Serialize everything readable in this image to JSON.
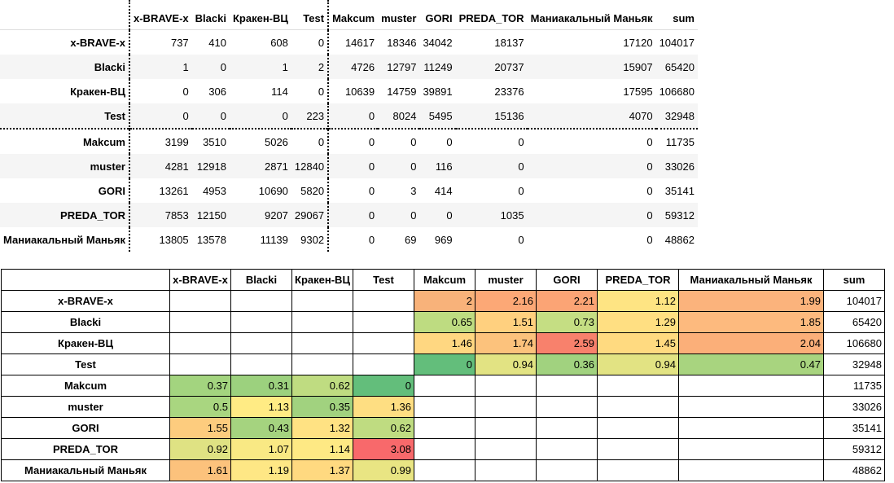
{
  "players": [
    "x-BRAVE-x",
    "Blacki",
    "Кракен-ВЦ",
    "Test",
    "Makcum",
    "muster",
    "GORI",
    "PREDA_TOR",
    "Маниакальный Маньяк"
  ],
  "top_table": {
    "header": [
      "",
      "x-BRAVE-x",
      "Blacki",
      "Кракен-ВЦ",
      "Test",
      "Makcum",
      "muster",
      "GORI",
      "PREDA_TOR",
      "Маниакальный Маньяк",
      "sum"
    ],
    "rows": [
      [
        "x-BRAVE-x",
        "737",
        "410",
        "608",
        "0",
        "14617",
        "18346",
        "34042",
        "18137",
        "17120",
        "104017"
      ],
      [
        "Blacki",
        "1",
        "0",
        "1",
        "2",
        "4726",
        "12797",
        "11249",
        "20737",
        "15907",
        "65420"
      ],
      [
        "Кракен-ВЦ",
        "0",
        "306",
        "114",
        "0",
        "10639",
        "14759",
        "39891",
        "23376",
        "17595",
        "106680"
      ],
      [
        "Test",
        "0",
        "0",
        "0",
        "223",
        "0",
        "8024",
        "5495",
        "15136",
        "4070",
        "32948"
      ],
      [
        "Makcum",
        "3199",
        "3510",
        "5026",
        "0",
        "0",
        "0",
        "0",
        "0",
        "0",
        "11735"
      ],
      [
        "muster",
        "4281",
        "12918",
        "2871",
        "12840",
        "0",
        "0",
        "116",
        "0",
        "0",
        "33026"
      ],
      [
        "GORI",
        "13261",
        "4953",
        "10690",
        "5820",
        "0",
        "3",
        "414",
        "0",
        "0",
        "35141"
      ],
      [
        "PREDA_TOR",
        "7853",
        "12150",
        "9207",
        "29067",
        "0",
        "0",
        "0",
        "1035",
        "0",
        "59312"
      ],
      [
        "Маниакальный Маньяк",
        "13805",
        "13578",
        "11139",
        "9302",
        "0",
        "69",
        "969",
        "0",
        "0",
        "48862"
      ]
    ]
  },
  "grid": {
    "header": [
      "",
      "x-BRAVE-x",
      "Blacki",
      "Кракен-ВЦ",
      "Test",
      "Makcum",
      "muster",
      "GORI",
      "PREDA_TOR",
      "Маниакальный Маньяк",
      "sum"
    ],
    "rows": [
      [
        "x-BRAVE-x",
        "",
        "",
        "",
        "",
        "2",
        "2.16",
        "2.21",
        "1.12",
        "1.99",
        "104017"
      ],
      [
        "Blacki",
        "",
        "",
        "",
        "",
        "0.65",
        "1.51",
        "0.73",
        "1.29",
        "1.85",
        "65420"
      ],
      [
        "Кракен-ВЦ",
        "",
        "",
        "",
        "",
        "1.46",
        "1.74",
        "2.59",
        "1.45",
        "2.04",
        "106680"
      ],
      [
        "Test",
        "",
        "",
        "",
        "",
        "0",
        "0.94",
        "0.36",
        "0.94",
        "0.47",
        "32948"
      ],
      [
        "Makcum",
        "0.37",
        "0.31",
        "0.62",
        "0",
        "",
        "",
        "",
        "",
        "",
        "11735"
      ],
      [
        "muster",
        "0.5",
        "1.13",
        "0.35",
        "1.36",
        "",
        "",
        "",
        "",
        "",
        "33026"
      ],
      [
        "GORI",
        "1.55",
        "0.43",
        "1.32",
        "0.62",
        "",
        "",
        "",
        "",
        "",
        "35141"
      ],
      [
        "PREDA_TOR",
        "0.92",
        "1.07",
        "1.14",
        "3.08",
        "",
        "",
        "",
        "",
        "",
        "59312"
      ],
      [
        "Маниакальный Маньяк",
        "1.61",
        "1.19",
        "1.37",
        "0.99",
        "",
        "",
        "",
        "",
        "",
        "48862"
      ]
    ],
    "colors": [
      [
        "",
        "",
        "",
        "",
        "#f8b27a",
        "#fca876",
        "#fba475",
        "#fee483",
        "#fbb37c"
      ],
      [
        "",
        "",
        "",
        "",
        "#bedc81",
        "#ffd07f",
        "#c5de83",
        "#ffdf82",
        "#fdba7e"
      ],
      [
        "",
        "",
        "",
        "",
        "#ffd781",
        "#fcc27c",
        "#f8816c",
        "#ffda80",
        "#fbaf79"
      ],
      [
        "",
        "",
        "",
        "",
        "#63be7b",
        "#e2e383",
        "#a1d27f",
        "#e2e383",
        "#a8d47f"
      ],
      [
        "#a3d47f",
        "#9cd17e",
        "#bfdc81",
        "#63be7b",
        "",
        "",
        "",
        "",
        ""
      ],
      [
        "#a9d680",
        "#ffeb84",
        "#a1d27f",
        "#fede82",
        "",
        "",
        "",
        "",
        ""
      ],
      [
        "#fdcc7e",
        "#a5d37f",
        "#ffe283",
        "#bfdc81",
        "",
        "",
        "",
        "",
        ""
      ],
      [
        "#dfe283",
        "#f9e984",
        "#fee984",
        "#f8696b",
        "",
        "",
        "",
        "",
        ""
      ],
      [
        "#fcc27c",
        "#fee785",
        "#ffd980",
        "#e9e583",
        "",
        "",
        "",
        "",
        ""
      ]
    ]
  }
}
